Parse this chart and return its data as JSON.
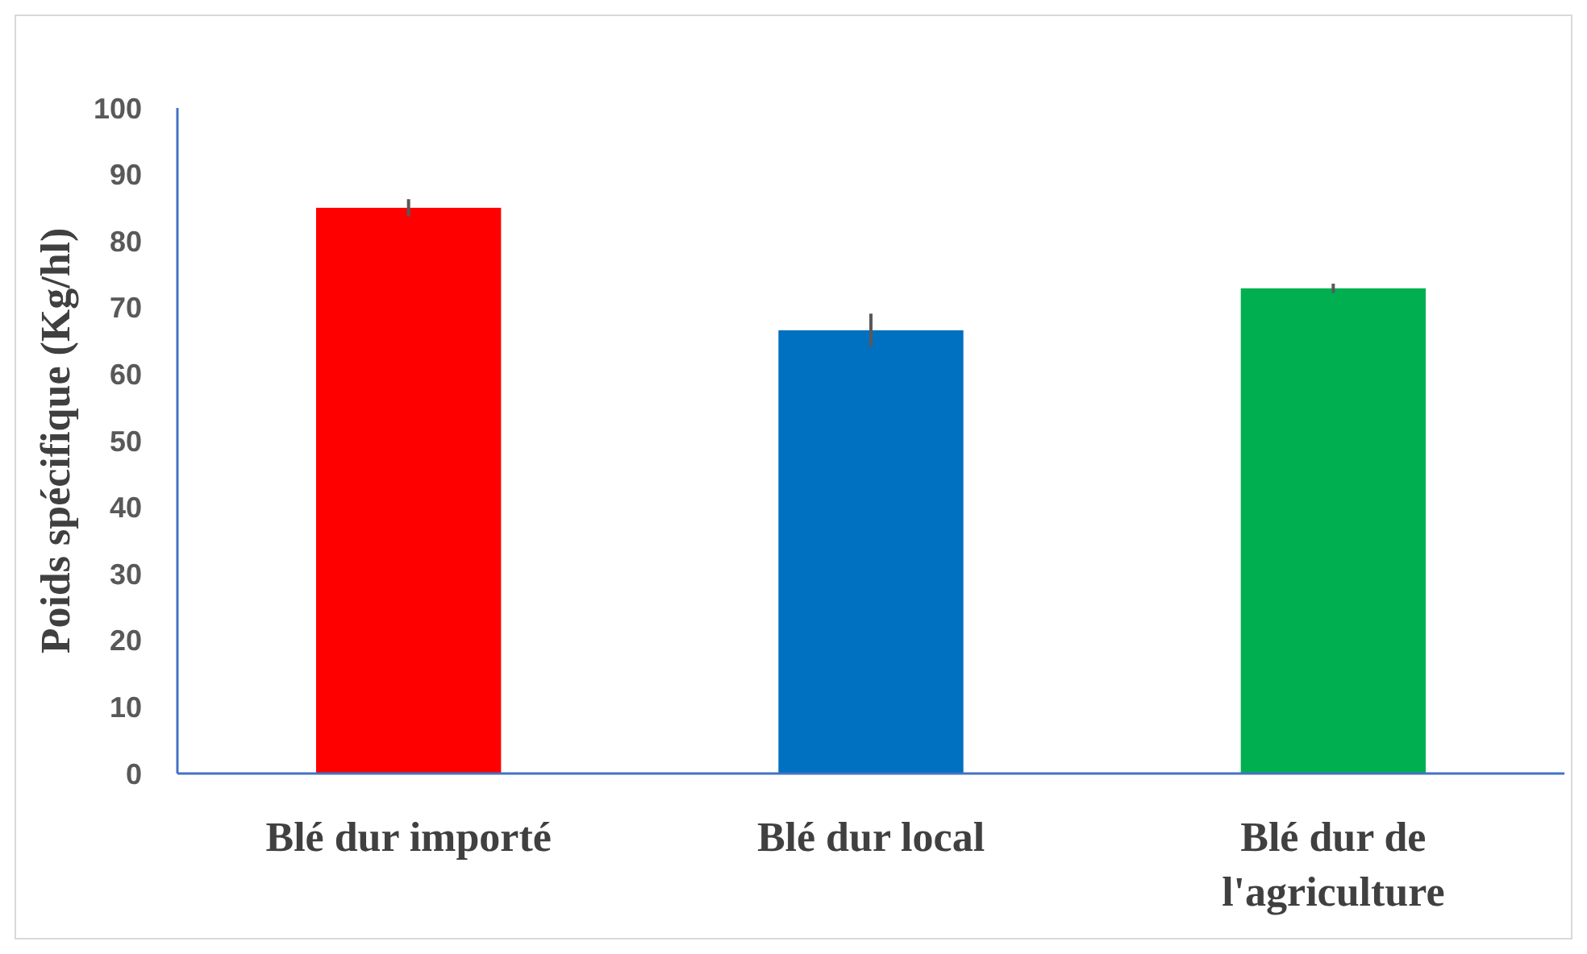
{
  "chart_data": {
    "type": "bar",
    "ylabel": "Poids spécifique (Kg/hl)",
    "categories": [
      "Blé dur importé",
      "Blé dur local",
      "Blé dur de l'agriculture"
    ],
    "values": [
      85,
      66.6,
      72.9
    ],
    "colors": [
      "#ff0000",
      "#0070c0",
      "#00b050"
    ],
    "errors": [
      1.3,
      2.5,
      0.7
    ],
    "ylim": [
      0,
      100
    ],
    "yticks": [
      0,
      10,
      20,
      30,
      40,
      50,
      60,
      70,
      80,
      90,
      100
    ],
    "grid": false
  }
}
